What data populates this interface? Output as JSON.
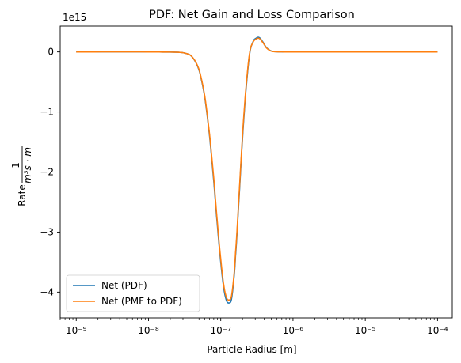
{
  "chart_data": {
    "type": "line",
    "title": "PDF: Net Gain and Loss Comparison",
    "xlabel": "Particle Radius [m]",
    "ylabel_prefix": "Rate",
    "ylabel_fraction_numerator": "1",
    "ylabel_fraction_denominator": "m³s · m",
    "y_offset_text": "1e15",
    "x_scale": "log",
    "xlim": [
      6e-10,
      0.00016
    ],
    "ylim": [
      -4430000000000000.0,
      430000000000000.0
    ],
    "grid": false,
    "legend_position": "lower-left",
    "x_ticks": [
      {
        "value": 1e-09,
        "label": "10⁻⁹"
      },
      {
        "value": 1e-08,
        "label": "10⁻⁸"
      },
      {
        "value": 1e-07,
        "label": "10⁻⁷"
      },
      {
        "value": 1e-06,
        "label": "10⁻⁶"
      },
      {
        "value": 1e-05,
        "label": "10⁻⁵"
      },
      {
        "value": 0.0001,
        "label": "10⁻⁴"
      }
    ],
    "y_ticks": [
      {
        "value": 0,
        "label": "0"
      },
      {
        "value": -1000000000000000.0,
        "label": "−1"
      },
      {
        "value": -2000000000000000.0,
        "label": "−2"
      },
      {
        "value": -3000000000000000.0,
        "label": "−3"
      },
      {
        "value": -4000000000000000.0,
        "label": "−4"
      }
    ],
    "series": [
      {
        "name": "Net (PDF)",
        "color": "#1f77b4",
        "x": [
          1e-09,
          1e-08,
          2.5e-08,
          3.2e-08,
          4e-08,
          5e-08,
          6e-08,
          7e-08,
          8e-08,
          9e-08,
          1e-07,
          1.1e-07,
          1.2e-07,
          1.3e-07,
          1.4e-07,
          1.5e-07,
          1.6e-07,
          1.8e-07,
          2e-07,
          2.2e-07,
          2.5e-07,
          2.8e-07,
          3.1e-07,
          3.4e-07,
          3.8e-07,
          4.3e-07,
          5e-07,
          6e-07,
          8e-07,
          1e-06,
          1e-05,
          0.0001
        ],
        "y": [
          0,
          0,
          -5000000000000.0,
          -20000000000000.0,
          -80000000000000.0,
          -300000000000000.0,
          -750000000000000.0,
          -1400000000000000.0,
          -2150000000000000.0,
          -2900000000000000.0,
          -3500000000000000.0,
          -3930000000000000.0,
          -4140000000000000.0,
          -4180000000000000.0,
          -4130000000000000.0,
          -3850000000000000.0,
          -3400000000000000.0,
          -2400000000000000.0,
          -1450000000000000.0,
          -720000000000000.0,
          -50000000000000.0,
          170000000000000.0,
          230000000000000.0,
          240000000000000.0,
          170000000000000.0,
          70000000000000.0,
          15000000000000.0,
          2000000000000.0,
          0,
          0,
          0,
          0
        ]
      },
      {
        "name": "Net (PMF to PDF)",
        "color": "#ff7f0e",
        "x": [
          1e-09,
          1e-08,
          2.5e-08,
          3.2e-08,
          4e-08,
          5e-08,
          6e-08,
          7e-08,
          8e-08,
          9e-08,
          1e-07,
          1.1e-07,
          1.2e-07,
          1.3e-07,
          1.4e-07,
          1.5e-07,
          1.6e-07,
          1.8e-07,
          2e-07,
          2.2e-07,
          2.5e-07,
          2.8e-07,
          3.1e-07,
          3.4e-07,
          3.8e-07,
          4.3e-07,
          5e-07,
          6e-07,
          8e-07,
          1e-06,
          1e-05,
          0.0001
        ],
        "y": [
          0,
          0,
          -5000000000000.0,
          -20000000000000.0,
          -80000000000000.0,
          -290000000000000.0,
          -730000000000000.0,
          -1370000000000000.0,
          -2100000000000000.0,
          -2850000000000000.0,
          -3450000000000000.0,
          -3880000000000000.0,
          -4090000000000000.0,
          -4130000000000000.0,
          -4080000000000000.0,
          -3800000000000000.0,
          -3350000000000000.0,
          -2350000000000000.0,
          -1400000000000000.0,
          -680000000000000.0,
          -30000000000000.0,
          160000000000000.0,
          215000000000000.0,
          225000000000000.0,
          160000000000000.0,
          65000000000000.0,
          13000000000000.0,
          2000000000000.0,
          0,
          0,
          0,
          0
        ]
      }
    ]
  }
}
